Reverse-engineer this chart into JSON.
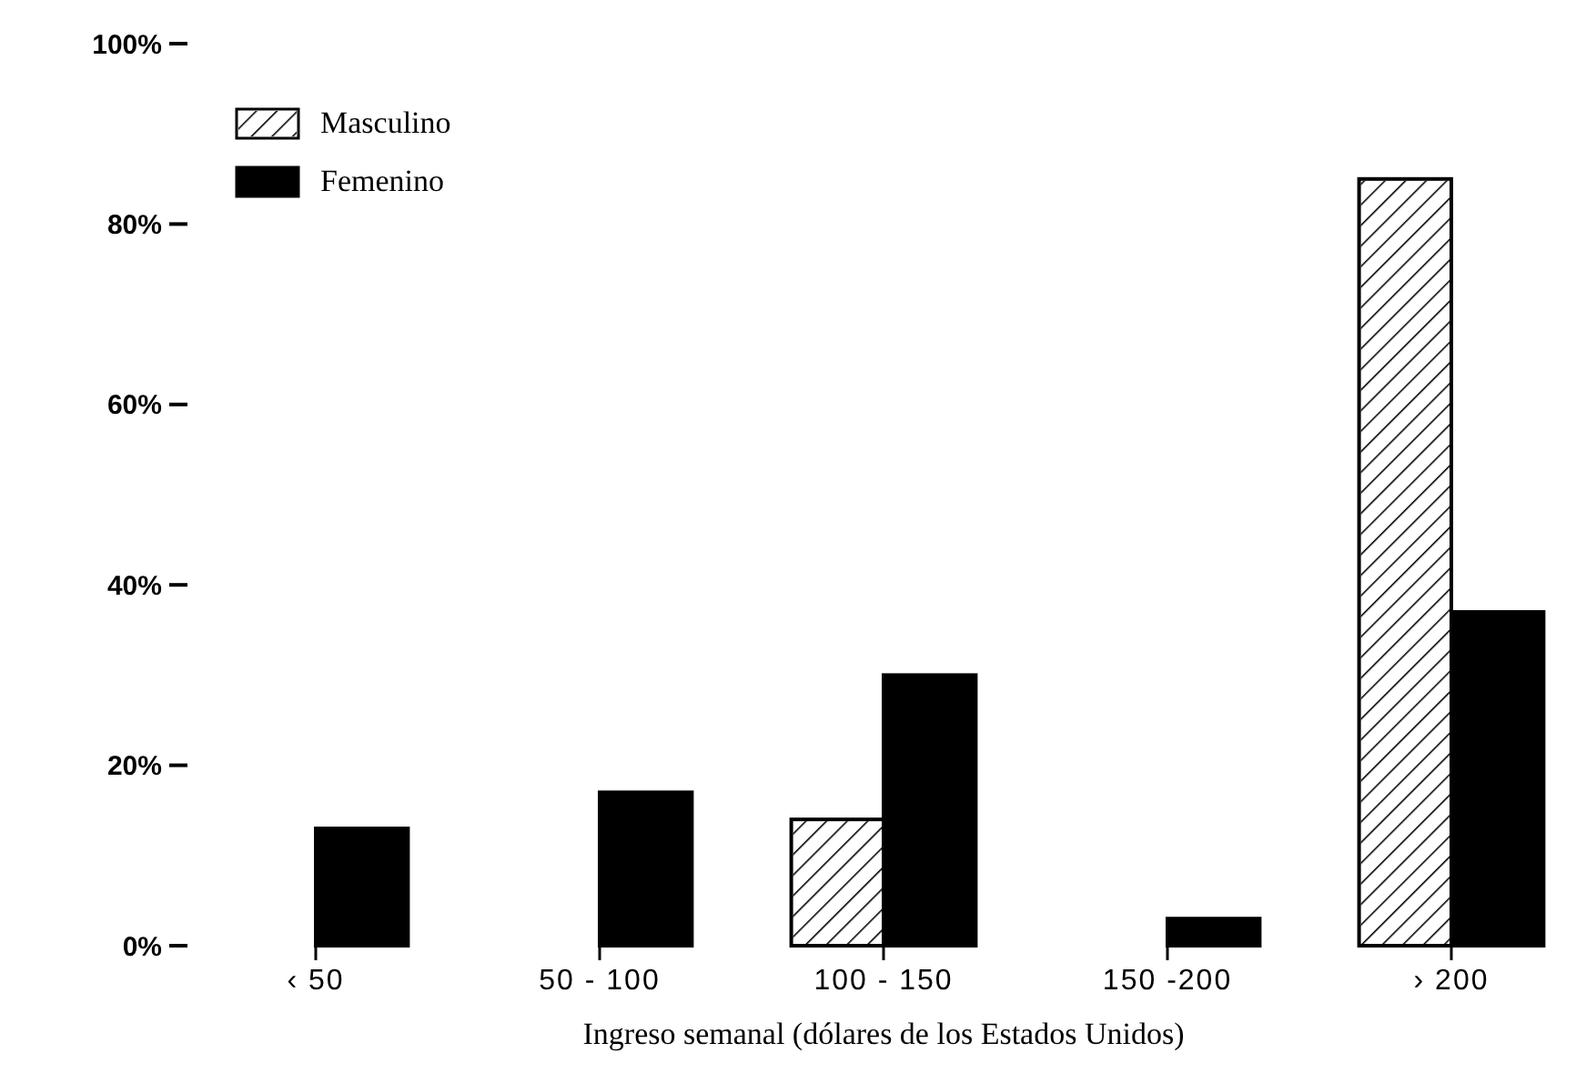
{
  "chart_data": {
    "type": "bar",
    "xlabel": "Ingreso semanal (dólares de los Estados Unidos)",
    "categories": [
      "‹ 50",
      "50 - 100",
      "100 - 150",
      "150 -200",
      "› 200"
    ],
    "series": [
      {
        "name": "Masculino",
        "color": "#ffffff",
        "values": [
          0,
          0,
          14,
          0,
          85
        ]
      },
      {
        "name": "Femenino",
        "color": "#000000",
        "values": [
          13,
          17,
          30,
          3,
          37
        ]
      }
    ],
    "ylim": [
      0,
      100
    ],
    "yticks": [
      {
        "value": 0,
        "label": "0%"
      },
      {
        "value": 20,
        "label": "20%"
      },
      {
        "value": 40,
        "label": "40%"
      },
      {
        "value": 60,
        "label": "60%"
      },
      {
        "value": 80,
        "label": "80%"
      },
      {
        "value": 100,
        "label": "100%"
      }
    ],
    "legend": "top left",
    "grid": false
  }
}
